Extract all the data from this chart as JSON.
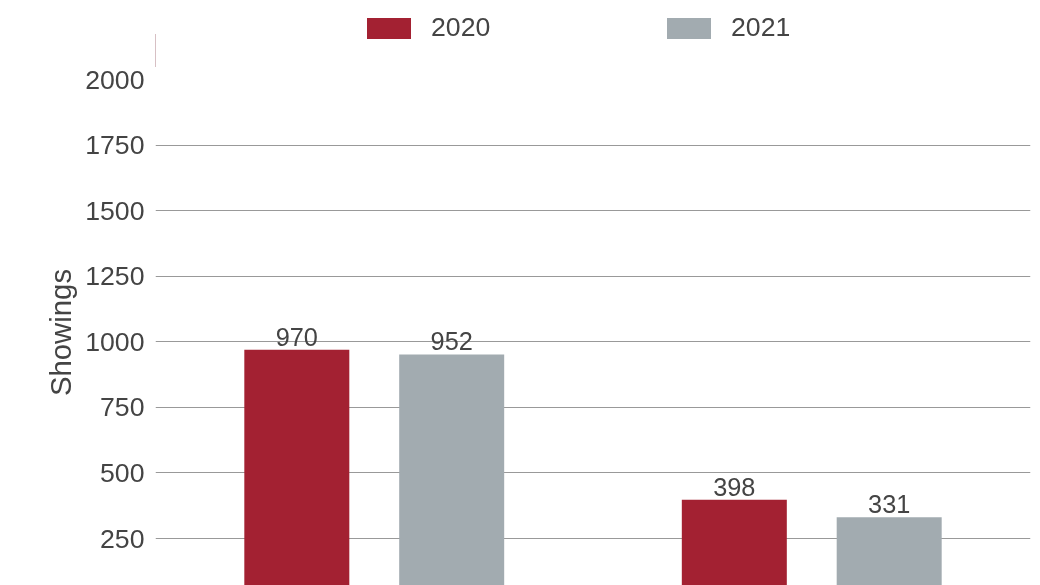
{
  "chart_data": {
    "type": "bar",
    "ylabel": "Showings",
    "categories": [
      null,
      null
    ],
    "series": [
      {
        "name": "2020",
        "color": "#a32132",
        "values": [
          970,
          398
        ]
      },
      {
        "name": "2021",
        "color": "#a2abb0",
        "values": [
          952,
          331
        ]
      }
    ],
    "ylim": [
      71,
      2000
    ],
    "yticks": [
      250,
      500,
      750,
      1000,
      1250,
      1500,
      1750,
      2000
    ],
    "grid": "y",
    "legend": "top",
    "data_labels": true,
    "tick_labels": "y"
  }
}
